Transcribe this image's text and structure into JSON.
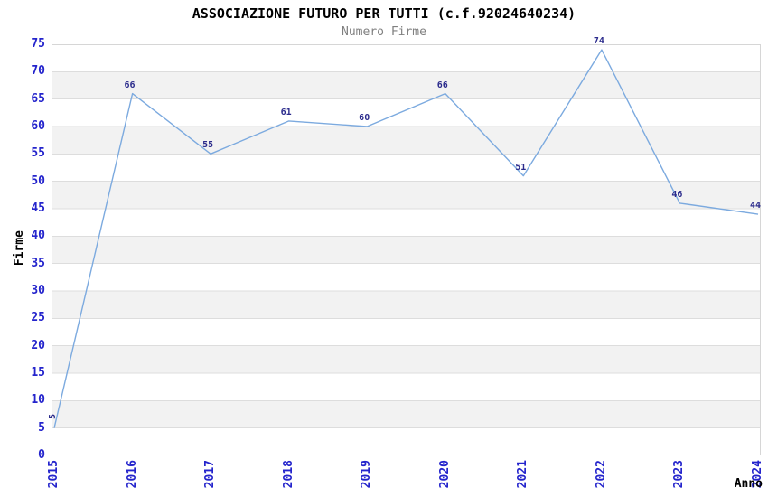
{
  "chart_data": {
    "type": "line",
    "title": "ASSOCIAZIONE FUTURO PER TUTTI (c.f.92024640234)",
    "subtitle": "Numero Firme",
    "x": [
      "2015",
      "2016",
      "2017",
      "2018",
      "2019",
      "2020",
      "2021",
      "2022",
      "2023",
      "2024"
    ],
    "values": [
      5,
      66,
      55,
      61,
      60,
      66,
      51,
      74,
      46,
      44
    ],
    "xlabel": "Anno",
    "ylabel": "Firme",
    "ylim": [
      0,
      75
    ],
    "ytick_step": 5,
    "grid": true,
    "legend": "none",
    "banded_background": true,
    "colors": {
      "line": "#7CAADF",
      "tick_labels": "#2424CC",
      "value_labels": "#2B2B8C",
      "band_fill": "#F2F2F2",
      "grid_line": "#DDDDDD",
      "plot_border": "#D6D6D6",
      "title": "#000000",
      "subtitle": "#808080",
      "background": "#FFFFFF"
    }
  }
}
